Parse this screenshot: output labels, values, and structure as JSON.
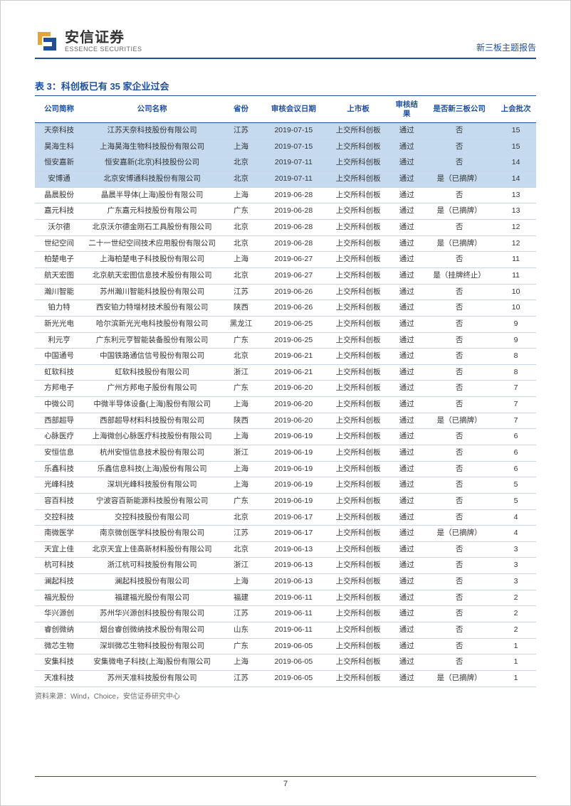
{
  "header": {
    "brand_cn": "安信证券",
    "brand_en": "ESSENCE SECURITIES",
    "report_type": "新三板主题报告"
  },
  "table": {
    "title": "表 3：科创板已有 35 家企业过会",
    "columns": [
      "公司简称",
      "公司名称",
      "省份",
      "审核会议日期",
      "上市板",
      "审核结果",
      "是否新三板公司",
      "上会批次"
    ],
    "col_widths_class": [
      "col-abbr",
      "col-name",
      "col-prov",
      "col-date",
      "col-board",
      "col-result",
      "col-neeq",
      "col-batch"
    ],
    "rows": [
      {
        "hl": true,
        "cells": [
          "天奈科技",
          "江苏天奈科技股份有限公司",
          "江苏",
          "2019-07-15",
          "上交所科创板",
          "通过",
          "否",
          "15"
        ]
      },
      {
        "hl": true,
        "cells": [
          "昊海生科",
          "上海昊海生物科技股份有限公司",
          "上海",
          "2019-07-15",
          "上交所科创板",
          "通过",
          "否",
          "15"
        ]
      },
      {
        "hl": true,
        "cells": [
          "恒安嘉新",
          "恒安嘉新(北京)科技股份公司",
          "北京",
          "2019-07-11",
          "上交所科创板",
          "通过",
          "否",
          "14"
        ]
      },
      {
        "hl": true,
        "cells": [
          "安博通",
          "北京安博通科技股份有限公司",
          "北京",
          "2019-07-11",
          "上交所科创板",
          "通过",
          "是（已摘牌）",
          "14"
        ]
      },
      {
        "hl": false,
        "cells": [
          "晶晨股份",
          "晶晨半导体(上海)股份有限公司",
          "上海",
          "2019-06-28",
          "上交所科创板",
          "通过",
          "否",
          "13"
        ]
      },
      {
        "hl": false,
        "cells": [
          "嘉元科技",
          "广东嘉元科技股份有限公司",
          "广东",
          "2019-06-28",
          "上交所科创板",
          "通过",
          "是（已摘牌）",
          "13"
        ]
      },
      {
        "hl": false,
        "cells": [
          "沃尔德",
          "北京沃尔德金刚石工具股份有限公司",
          "北京",
          "2019-06-28",
          "上交所科创板",
          "通过",
          "否",
          "12"
        ]
      },
      {
        "hl": false,
        "cells": [
          "世纪空间",
          "二十一世纪空间技术应用股份有限公司",
          "北京",
          "2019-06-28",
          "上交所科创板",
          "通过",
          "是（已摘牌）",
          "12"
        ]
      },
      {
        "hl": false,
        "cells": [
          "柏楚电子",
          "上海柏楚电子科技股份有限公司",
          "上海",
          "2019-06-27",
          "上交所科创板",
          "通过",
          "否",
          "11"
        ]
      },
      {
        "hl": false,
        "cells": [
          "航天宏图",
          "北京航天宏图信息技术股份有限公司",
          "北京",
          "2019-06-27",
          "上交所科创板",
          "通过",
          "是（挂牌终止）",
          "11"
        ]
      },
      {
        "hl": false,
        "cells": [
          "瀚川智能",
          "苏州瀚川智能科技股份有限公司",
          "江苏",
          "2019-06-26",
          "上交所科创板",
          "通过",
          "否",
          "10"
        ]
      },
      {
        "hl": false,
        "cells": [
          "铂力特",
          "西安铂力特增材技术股份有限公司",
          "陕西",
          "2019-06-26",
          "上交所科创板",
          "通过",
          "否",
          "10"
        ]
      },
      {
        "hl": false,
        "cells": [
          "新光光电",
          "哈尔滨新光光电科技股份有限公司",
          "黑龙江",
          "2019-06-25",
          "上交所科创板",
          "通过",
          "否",
          "9"
        ]
      },
      {
        "hl": false,
        "cells": [
          "利元亨",
          "广东利元亨智能装备股份有限公司",
          "广东",
          "2019-06-25",
          "上交所科创板",
          "通过",
          "否",
          "9"
        ]
      },
      {
        "hl": false,
        "cells": [
          "中国通号",
          "中国铁路通信信号股份有限公司",
          "北京",
          "2019-06-21",
          "上交所科创板",
          "通过",
          "否",
          "8"
        ]
      },
      {
        "hl": false,
        "cells": [
          "虹软科技",
          "虹软科技股份有限公司",
          "浙江",
          "2019-06-21",
          "上交所科创板",
          "通过",
          "否",
          "8"
        ]
      },
      {
        "hl": false,
        "cells": [
          "方邦电子",
          "广州方邦电子股份有限公司",
          "广东",
          "2019-06-20",
          "上交所科创板",
          "通过",
          "否",
          "7"
        ]
      },
      {
        "hl": false,
        "cells": [
          "中微公司",
          "中微半导体设备(上海)股份有限公司",
          "上海",
          "2019-06-20",
          "上交所科创板",
          "通过",
          "否",
          "7"
        ]
      },
      {
        "hl": false,
        "cells": [
          "西部超导",
          "西部超导材料科技股份有限公司",
          "陕西",
          "2019-06-20",
          "上交所科创板",
          "通过",
          "是（已摘牌）",
          "7"
        ]
      },
      {
        "hl": false,
        "cells": [
          "心脉医疗",
          "上海微创心脉医疗科技股份有限公司",
          "上海",
          "2019-06-19",
          "上交所科创板",
          "通过",
          "否",
          "6"
        ]
      },
      {
        "hl": false,
        "cells": [
          "安恒信息",
          "杭州安恒信息技术股份有限公司",
          "浙江",
          "2019-06-19",
          "上交所科创板",
          "通过",
          "否",
          "6"
        ]
      },
      {
        "hl": false,
        "cells": [
          "乐鑫科技",
          "乐鑫信息科技(上海)股份有限公司",
          "上海",
          "2019-06-19",
          "上交所科创板",
          "通过",
          "否",
          "6"
        ]
      },
      {
        "hl": false,
        "cells": [
          "光峰科技",
          "深圳光峰科技股份有限公司",
          "上海",
          "2019-06-19",
          "上交所科创板",
          "通过",
          "否",
          "5"
        ]
      },
      {
        "hl": false,
        "cells": [
          "容百科技",
          "宁波容百新能源科技股份有限公司",
          "广东",
          "2019-06-19",
          "上交所科创板",
          "通过",
          "否",
          "5"
        ]
      },
      {
        "hl": false,
        "cells": [
          "交控科技",
          "交控科技股份有限公司",
          "北京",
          "2019-06-17",
          "上交所科创板",
          "通过",
          "否",
          "4"
        ]
      },
      {
        "hl": false,
        "cells": [
          "南微医学",
          "南京微创医学科技股份有限公司",
          "江苏",
          "2019-06-17",
          "上交所科创板",
          "通过",
          "是（已摘牌）",
          "4"
        ]
      },
      {
        "hl": false,
        "cells": [
          "天宜上佳",
          "北京天宜上佳高新材料股份有限公司",
          "北京",
          "2019-06-13",
          "上交所科创板",
          "通过",
          "否",
          "3"
        ]
      },
      {
        "hl": false,
        "cells": [
          "杭可科技",
          "浙江杭可科技股份有限公司",
          "浙江",
          "2019-06-13",
          "上交所科创板",
          "通过",
          "否",
          "3"
        ]
      },
      {
        "hl": false,
        "cells": [
          "澜起科技",
          "澜起科技股份有限公司",
          "上海",
          "2019-06-13",
          "上交所科创板",
          "通过",
          "否",
          "3"
        ]
      },
      {
        "hl": false,
        "cells": [
          "福光股份",
          "福建福光股份有限公司",
          "福建",
          "2019-06-11",
          "上交所科创板",
          "通过",
          "否",
          "2"
        ]
      },
      {
        "hl": false,
        "cells": [
          "华兴源创",
          "苏州华兴源创科技股份有限公司",
          "江苏",
          "2019-06-11",
          "上交所科创板",
          "通过",
          "否",
          "2"
        ]
      },
      {
        "hl": false,
        "cells": [
          "睿创微纳",
          "烟台睿创微纳技术股份有限公司",
          "山东",
          "2019-06-11",
          "上交所科创板",
          "通过",
          "否",
          "2"
        ]
      },
      {
        "hl": false,
        "cells": [
          "微芯生物",
          "深圳微芯生物科技股份有限公司",
          "广东",
          "2019-06-05",
          "上交所科创板",
          "通过",
          "否",
          "1"
        ]
      },
      {
        "hl": false,
        "cells": [
          "安集科技",
          "安集微电子科技(上海)股份有限公司",
          "上海",
          "2019-06-05",
          "上交所科创板",
          "通过",
          "否",
          "1"
        ]
      },
      {
        "hl": false,
        "cells": [
          "天准科技",
          "苏州天准科技股份有限公司",
          "江苏",
          "2019-06-05",
          "上交所科创板",
          "通过",
          "是（已摘牌）",
          "1"
        ]
      }
    ],
    "source_note": "资料来源：Wind，Choice，安信证券研究中心"
  },
  "page_number": "7",
  "colors": {
    "primary": "#1f4e9c",
    "highlight_bg": "#c5d9ef",
    "logo_orange": "#e8a23a",
    "logo_blue": "#1f4e9c"
  }
}
